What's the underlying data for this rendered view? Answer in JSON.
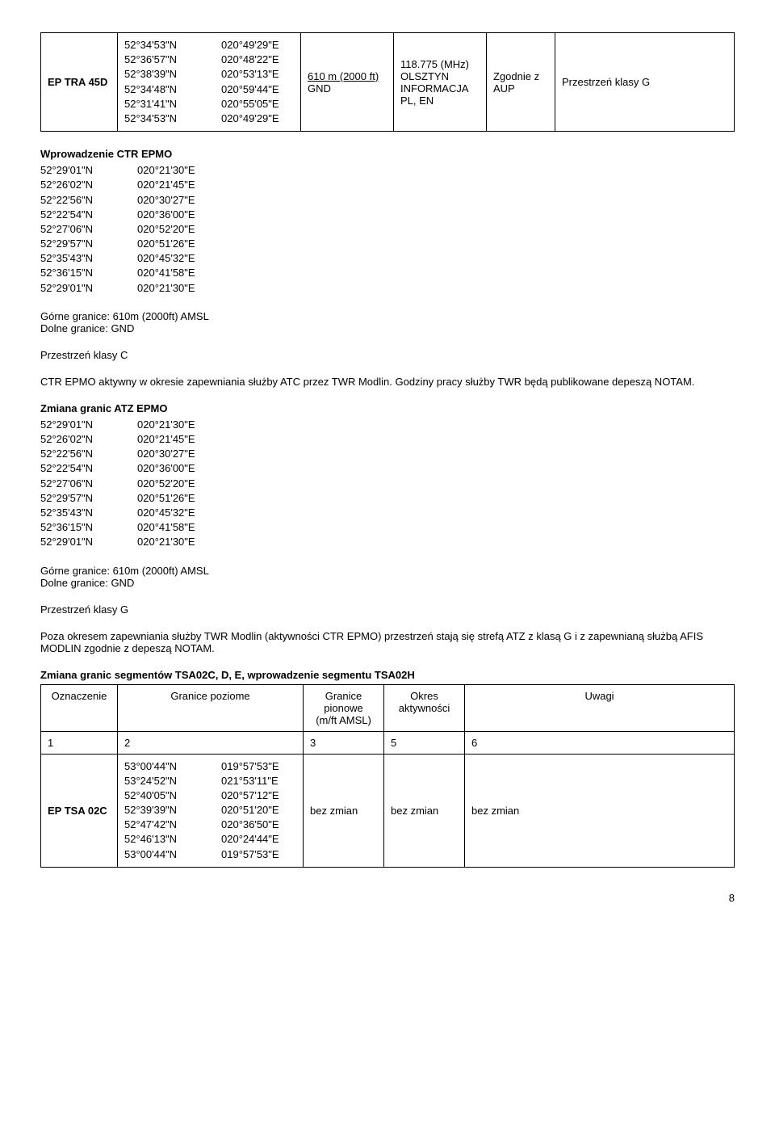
{
  "table1": {
    "row": {
      "name": "EP TRA 45D",
      "coords": [
        [
          "52°34'53\"N",
          "020°49'29\"E"
        ],
        [
          "52°36'57\"N",
          "020°48'22\"E"
        ],
        [
          "52°38'39\"N",
          "020°53'13\"E"
        ],
        [
          "52°34'48\"N",
          "020°59'44\"E"
        ],
        [
          "52°31'41\"N",
          "020°55'05\"E"
        ],
        [
          "52°34'53\"N",
          "020°49'29\"E"
        ]
      ],
      "vertical_line1": "610 m (2000 ft)",
      "vertical_line2": "GND",
      "freq": "118.775 (MHz)",
      "info1": "OLSZTYN",
      "info2": "INFORMACJA",
      "info3": "PL, EN",
      "aup1": "Zgodnie z",
      "aup2": "AUP",
      "class": "Przestrzeń klasy G"
    }
  },
  "ctr": {
    "title": "Wprowadzenie CTR EPMO",
    "coords": [
      [
        "52°29'01\"N",
        "020°21'30\"E"
      ],
      [
        "52°26'02\"N",
        "020°21'45\"E"
      ],
      [
        "52°22'56\"N",
        "020°30'27\"E"
      ],
      [
        "52°22'54\"N",
        "020°36'00\"E"
      ],
      [
        "52°27'06\"N",
        "020°52'20\"E"
      ],
      [
        "52°29'57\"N",
        "020°51'26\"E"
      ],
      [
        "52°35'43\"N",
        "020°45'32\"E"
      ],
      [
        "52°36'15\"N",
        "020°41'58\"E"
      ],
      [
        "52°29'01\"N",
        "020°21'30\"E"
      ]
    ],
    "upper": "Górne granice: 610m (2000ft) AMSL",
    "lower": "Dolne granice: GND",
    "class": "Przestrzeń klasy C",
    "note": "CTR EPMO aktywny w okresie zapewniania służby ATC przez TWR Modlin. Godziny pracy służby TWR będą publikowane depeszą NOTAM."
  },
  "atz": {
    "title": "Zmiana granic ATZ EPMO",
    "coords": [
      [
        "52°29'01\"N",
        "020°21'30\"E"
      ],
      [
        "52°26'02\"N",
        "020°21'45\"E"
      ],
      [
        "52°22'56\"N",
        "020°30'27\"E"
      ],
      [
        "52°22'54\"N",
        "020°36'00\"E"
      ],
      [
        "52°27'06\"N",
        "020°52'20\"E"
      ],
      [
        "52°29'57\"N",
        "020°51'26\"E"
      ],
      [
        "52°35'43\"N",
        "020°45'32\"E"
      ],
      [
        "52°36'15\"N",
        "020°41'58\"E"
      ],
      [
        "52°29'01\"N",
        "020°21'30\"E"
      ]
    ],
    "upper": "Górne granice: 610m (2000ft) AMSL",
    "lower": "Dolne granice: GND",
    "class": "Przestrzeń klasy G",
    "note": "Poza okresem zapewniania służby TWR Modlin (aktywności CTR EPMO) przestrzeń stają się strefą ATZ z klasą G i z zapewnianą służbą AFIS MODLIN zgodnie z depeszą NOTAM."
  },
  "tsa": {
    "title": "Zmiana granic segmentów TSA02C, D, E, wprowadzenie segmentu TSA02H",
    "headers": [
      "Oznaczenie",
      "Granice poziome",
      "Granice\npionowe\n(m/ft AMSL)",
      "Okres\naktywności",
      "Uwagi"
    ],
    "numrow": [
      "1",
      "2",
      "3",
      "5",
      "6"
    ],
    "row": {
      "name": "EP TSA 02C",
      "coords": [
        [
          "53°00'44\"N",
          "019°57'53\"E"
        ],
        [
          "53°24'52\"N",
          "021°53'11\"E"
        ],
        [
          "52°40'05\"N",
          "020°57'12\"E"
        ],
        [
          "52°39'39\"N",
          "020°51'20\"E"
        ],
        [
          "52°47'42\"N",
          "020°36'50\"E"
        ],
        [
          "52°46'13\"N",
          "020°24'44\"E"
        ],
        [
          "53°00'44\"N",
          "019°57'53\"E"
        ]
      ],
      "c3": "bez zmian",
      "c4": "bez zmian",
      "c5": "bez zmian"
    }
  },
  "page": "8"
}
